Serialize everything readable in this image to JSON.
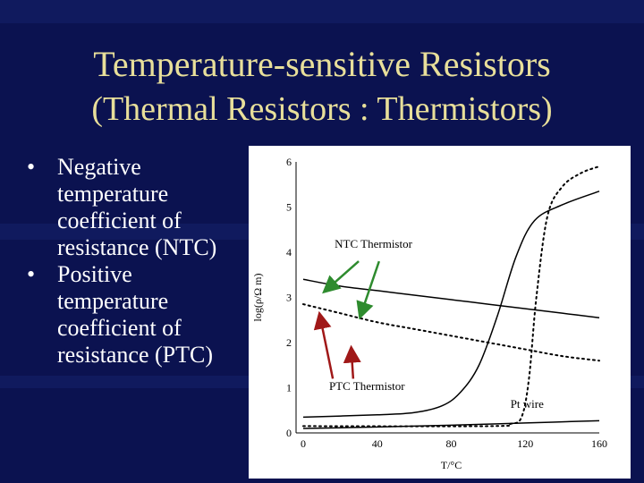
{
  "slide": {
    "title_line1": "Temperature-sensitive Resistors",
    "title_line2": "(Thermal Resistors : Thermistors)",
    "bullets": [
      {
        "symbol": "•",
        "text": "Negative temperature coefficient of resistance (NTC)"
      },
      {
        "symbol": "•",
        "text": "Positive temperature coefficient of resistance (PTC)"
      }
    ],
    "colors": {
      "background": "#0b1250",
      "title": "#e8df9a",
      "bullet_text": "#ffffff",
      "ntc_arrow": "#2e8b2e",
      "ptc_arrow": "#a01818"
    }
  },
  "chart_data": {
    "type": "line",
    "xlabel": "T/°C",
    "ylabel": "log(ρ/Ω m)",
    "xlim": [
      0,
      160
    ],
    "ylim": [
      0,
      6
    ],
    "x_ticks": [
      "0",
      "40",
      "80",
      "120",
      "160"
    ],
    "y_ticks": [
      "0",
      "1",
      "2",
      "3",
      "4",
      "5",
      "6"
    ],
    "grid": false,
    "series": [
      {
        "style": "solid",
        "x": [
          0,
          20,
          40,
          60,
          80,
          100,
          120,
          140,
          160
        ],
        "y": [
          3.4,
          3.25,
          3.15,
          3.05,
          2.95,
          2.85,
          2.75,
          2.65,
          2.55
        ]
      },
      {
        "style": "dotted",
        "x": [
          0,
          20,
          40,
          60,
          80,
          100,
          120,
          140,
          160
        ],
        "y": [
          2.85,
          2.65,
          2.45,
          2.3,
          2.15,
          2.0,
          1.85,
          1.7,
          1.6
        ]
      },
      {
        "style": "solid",
        "x": [
          0,
          40,
          60,
          75,
          85,
          95,
          105,
          115,
          125,
          140,
          160
        ],
        "y": [
          0.35,
          0.4,
          0.45,
          0.6,
          0.9,
          1.5,
          2.6,
          3.9,
          4.7,
          5.05,
          5.35
        ]
      },
      {
        "style": "dotted",
        "x": [
          0,
          100,
          112,
          118,
          122,
          126,
          132,
          140,
          150,
          160
        ],
        "y": [
          0.15,
          0.15,
          0.2,
          0.35,
          1.2,
          3.0,
          4.8,
          5.45,
          5.75,
          5.9
        ]
      },
      {
        "style": "solid",
        "x": [
          0,
          40,
          80,
          120,
          160
        ],
        "y": [
          0.1,
          0.13,
          0.17,
          0.22,
          0.27
        ]
      }
    ],
    "annotations": [
      "NTC Thermistor",
      "PTC Thermistor",
      "Pt wire"
    ]
  }
}
